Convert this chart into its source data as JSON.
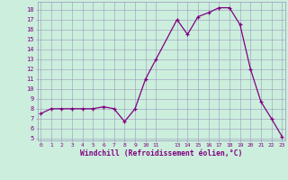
{
  "x": [
    0,
    1,
    2,
    3,
    4,
    5,
    6,
    7,
    8,
    9,
    10,
    11,
    13,
    14,
    15,
    16,
    17,
    18,
    19,
    20,
    21,
    22,
    23
  ],
  "y": [
    7.5,
    8.0,
    8.0,
    8.0,
    8.0,
    8.0,
    8.2,
    8.0,
    6.7,
    8.0,
    11.0,
    13.0,
    17.0,
    15.5,
    17.3,
    17.7,
    18.2,
    18.2,
    16.5,
    12.0,
    8.7,
    7.0,
    5.2
  ],
  "xtick_positions": [
    0,
    1,
    2,
    3,
    4,
    5,
    6,
    7,
    8,
    9,
    10,
    11,
    13,
    14,
    15,
    16,
    17,
    18,
    19,
    20,
    21,
    22,
    23
  ],
  "xtick_labels": [
    "0",
    "1",
    "2",
    "3",
    "4",
    "5",
    "6",
    "7",
    "8",
    "9",
    "10",
    "11",
    "13",
    "14",
    "15",
    "16",
    "17",
    "18",
    "19",
    "20",
    "21",
    "22",
    "23"
  ],
  "ytick_min": 5,
  "ytick_max": 18,
  "xlabel": "Windchill (Refroidissement éolien,°C)",
  "line_color": "#800080",
  "marker_color": "#800080",
  "bg_color": "#cceedd",
  "grid_color": "#9999bb",
  "tick_color": "#800080",
  "xlim": [
    -0.3,
    23.3
  ],
  "ylim": [
    4.8,
    18.8
  ]
}
